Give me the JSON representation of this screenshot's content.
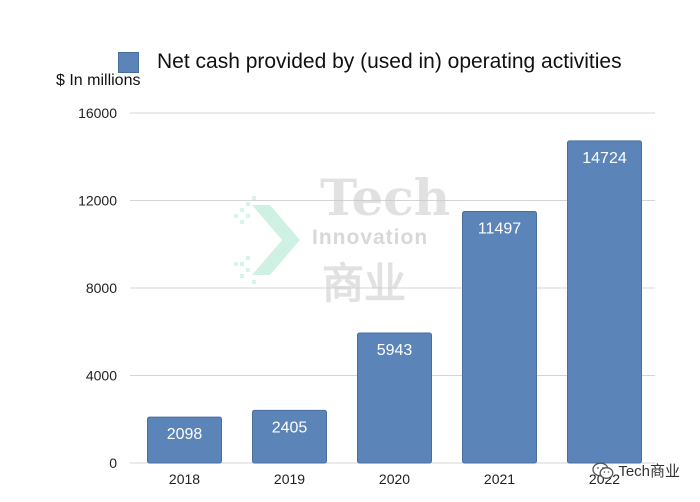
{
  "chart_data": {
    "type": "bar",
    "title": "",
    "legend": "Net cash provided by (used in) operating activities",
    "unit_label": "$ In millions",
    "categories": [
      "2018",
      "2019",
      "2020",
      "2021",
      "2022"
    ],
    "values": [
      2098,
      2405,
      5943,
      11497,
      14724
    ],
    "y_ticks": [
      "0",
      "4000",
      "8000",
      "12000",
      "16000"
    ],
    "ylim": [
      0,
      16000
    ],
    "grid": true,
    "legend_position": "top",
    "xlabel": "",
    "ylabel": "$ In millions"
  },
  "colors": {
    "bar": "#5b84b9",
    "bar_border": "#4a6f9e",
    "grid": "#d4d4d4",
    "label": "#ffffff"
  },
  "watermark": {
    "line1": "Tech",
    "line2": "Innovation",
    "line3": "商业"
  },
  "footer": {
    "icon": "wechat-icon",
    "text": "Tech商业"
  }
}
